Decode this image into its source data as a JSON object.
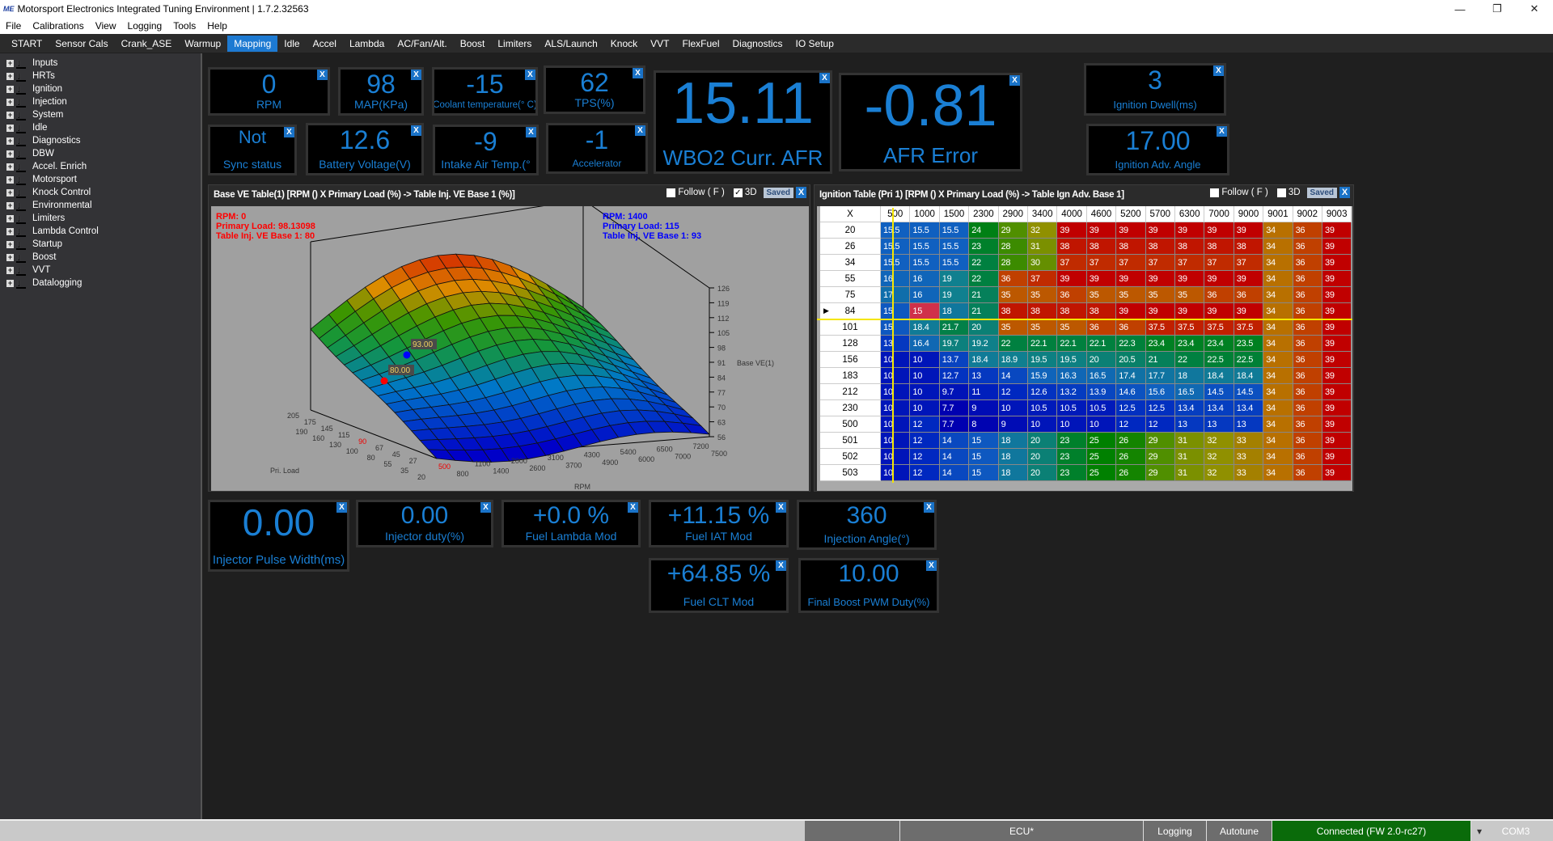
{
  "window": {
    "title": "Motorsport Electronics Integrated Tuning Environment | 1.7.2.32563",
    "logo": "ME",
    "controls": [
      "—",
      "❐",
      "✕"
    ]
  },
  "menu": [
    "File",
    "Calibrations",
    "View",
    "Logging",
    "Tools",
    "Help"
  ],
  "tabs": [
    "START",
    "Sensor Cals",
    "Crank_ASE",
    "Warmup",
    "Mapping",
    "Idle",
    "Accel",
    "Lambda",
    "AC/Fan/Alt.",
    "Boost",
    "Limiters",
    "ALS/Launch",
    "Knock",
    "VVT",
    "FlexFuel",
    "Diagnostics",
    "IO Setup"
  ],
  "active_tab": "Mapping",
  "sidebar": [
    "Inputs",
    "HRTs",
    "Ignition",
    "Injection",
    "System",
    "Idle",
    "Diagnostics",
    "DBW",
    "Accel. Enrich",
    "Motorsport",
    "Knock Control",
    "Environmental",
    "Limiters",
    "Lambda Control",
    "Startup",
    "Boost",
    "VVT",
    "Datalogging"
  ],
  "gauges": [
    {
      "value": "0",
      "label": "RPM"
    },
    {
      "value": "98",
      "label": "MAP(KPa)"
    },
    {
      "value": "-15",
      "label": "Coolant temperature(° C)"
    },
    {
      "value": "62",
      "label": "TPS(%)"
    },
    {
      "value": "Not",
      "label": "Sync status"
    },
    {
      "value": "12.6",
      "label": "Battery Voltage(V)"
    },
    {
      "value": "-9",
      "label": "Intake Air Temp.(°"
    },
    {
      "value": "-1",
      "label": "Accelerator"
    },
    {
      "value": "15.11",
      "label": "WBO2 Curr. AFR"
    },
    {
      "value": "-0.81",
      "label": "AFR Error"
    },
    {
      "value": "3",
      "label": "Ignition Dwell(ms)"
    },
    {
      "value": "17.00",
      "label": "Ignition Adv. Angle"
    },
    {
      "value": "0.00",
      "label": "Injector Pulse Width(ms)"
    },
    {
      "value": "0.00",
      "label": "Injector duty(%)"
    },
    {
      "value": "+0.0 %",
      "label": "Fuel Lambda Mod"
    },
    {
      "value": "+11.15 %",
      "label": "Fuel IAT Mod"
    },
    {
      "value": "360",
      "label": "Injection Angle(°)"
    },
    {
      "value": "+64.85 %",
      "label": "Fuel CLT Mod"
    },
    {
      "value": "10.00",
      "label": "Final Boost PWM Duty(%)"
    }
  ],
  "close_label": "X",
  "ve_panel": {
    "title": "Base VE Table(1) [RPM () X Primary Load (%) -> Table Inj. VE Base 1 (%)]",
    "follow_label": "Follow ( F )",
    "follow_checked": false,
    "3d_label": "3D",
    "3d_checked": true,
    "saved_label": "Saved",
    "cursor_red": [
      "RPM: 0",
      "Primary Load: 98.13098",
      "Table Inj. VE Base 1: 80"
    ],
    "cursor_blue": [
      "RPM: 1400",
      "Primary Load: 115",
      "Table Inj. VE Base 1: 93"
    ],
    "marker_red": "80.00",
    "marker_blue": "93.00",
    "colors": {
      "red": "#ff0000",
      "blue": "#0000ff"
    },
    "xlabel": "RPM",
    "ylabel": "Pri. Load",
    "zlabel": "Base VE(1)",
    "rpm_ticks": [
      "500",
      "800",
      "1100",
      "1400",
      "2000",
      "2600",
      "3100",
      "3700",
      "4300",
      "4900",
      "5400",
      "6000",
      "6500",
      "7000",
      "7200",
      "7500"
    ],
    "load_ticks": [
      "205",
      "190",
      "175",
      "160",
      "145",
      "130",
      "115",
      "100",
      "90",
      "80",
      "67",
      "55",
      "45",
      "35",
      "27",
      "20"
    ],
    "z_ticks": [
      "56",
      "63",
      "70",
      "77",
      "84",
      "91",
      "98",
      "105",
      "112",
      "119",
      "126"
    ]
  },
  "ign_panel": {
    "title": "Ignition Table (Pri 1) [RPM () X Primary Load (%) -> Table Ign Adv. Base 1]",
    "follow_label": "Follow ( F )",
    "follow_checked": false,
    "3d_label": "3D",
    "3d_checked": false,
    "saved_label": "Saved",
    "corner": "X",
    "columns": [
      "500",
      "1000",
      "1500",
      "2300",
      "2900",
      "3400",
      "4000",
      "4600",
      "5200",
      "5700",
      "6300",
      "7000",
      "9000",
      "9001",
      "9002",
      "9003"
    ],
    "selected_row": "84",
    "highlight_cell": {
      "row": "84",
      "col": "1000",
      "color": "#d0304a"
    },
    "rows": [
      {
        "load": "20",
        "values": [
          "15.5",
          "15.5",
          "15.5",
          "24",
          "29",
          "32",
          "39",
          "39",
          "39",
          "39",
          "39",
          "39",
          "39",
          "34",
          "36",
          "39"
        ]
      },
      {
        "load": "26",
        "values": [
          "15.5",
          "15.5",
          "15.5",
          "23",
          "28",
          "31",
          "38",
          "38",
          "38",
          "38",
          "38",
          "38",
          "38",
          "34",
          "36",
          "39"
        ]
      },
      {
        "load": "34",
        "values": [
          "15.5",
          "15.5",
          "15.5",
          "22",
          "28",
          "30",
          "37",
          "37",
          "37",
          "37",
          "37",
          "37",
          "37",
          "34",
          "36",
          "39"
        ]
      },
      {
        "load": "55",
        "values": [
          "16",
          "16",
          "19",
          "22",
          "36",
          "37",
          "39",
          "39",
          "39",
          "39",
          "39",
          "39",
          "39",
          "34",
          "36",
          "39"
        ]
      },
      {
        "load": "75",
        "values": [
          "17",
          "16",
          "19",
          "21",
          "35",
          "35",
          "36",
          "35",
          "35",
          "35",
          "35",
          "36",
          "36",
          "34",
          "36",
          "39"
        ]
      },
      {
        "load": "84",
        "values": [
          "15",
          "15",
          "18",
          "21",
          "38",
          "38",
          "38",
          "38",
          "39",
          "39",
          "39",
          "39",
          "39",
          "34",
          "36",
          "39"
        ]
      },
      {
        "load": "101",
        "values": [
          "15",
          "18.4",
          "21.7",
          "20",
          "35",
          "35",
          "35",
          "36",
          "36",
          "37.5",
          "37.5",
          "37.5",
          "37.5",
          "34",
          "36",
          "39"
        ]
      },
      {
        "load": "128",
        "values": [
          "13",
          "16.4",
          "19.7",
          "19.2",
          "22",
          "22.1",
          "22.1",
          "22.1",
          "22.3",
          "23.4",
          "23.4",
          "23.4",
          "23.5",
          "34",
          "36",
          "39"
        ]
      },
      {
        "load": "156",
        "values": [
          "10",
          "10",
          "13.7",
          "18.4",
          "18.9",
          "19.5",
          "19.5",
          "20",
          "20.5",
          "21",
          "22",
          "22.5",
          "22.5",
          "34",
          "36",
          "39"
        ]
      },
      {
        "load": "183",
        "values": [
          "10",
          "10",
          "12.7",
          "13",
          "14",
          "15.9",
          "16.3",
          "16.5",
          "17.4",
          "17.7",
          "18",
          "18.4",
          "18.4",
          "34",
          "36",
          "39"
        ]
      },
      {
        "load": "212",
        "values": [
          "10",
          "10",
          "9.7",
          "11",
          "12",
          "12.6",
          "13.2",
          "13.9",
          "14.6",
          "15.6",
          "16.5",
          "14.5",
          "14.5",
          "34",
          "36",
          "39"
        ]
      },
      {
        "load": "230",
        "values": [
          "10",
          "10",
          "7.7",
          "9",
          "10",
          "10.5",
          "10.5",
          "10.5",
          "12.5",
          "12.5",
          "13.4",
          "13.4",
          "13.4",
          "34",
          "36",
          "39"
        ]
      },
      {
        "load": "500",
        "values": [
          "10",
          "12",
          "7.7",
          "8",
          "9",
          "10",
          "10",
          "10",
          "12",
          "12",
          "13",
          "13",
          "13",
          "34",
          "36",
          "39"
        ]
      },
      {
        "load": "501",
        "values": [
          "10",
          "12",
          "14",
          "15",
          "18",
          "20",
          "23",
          "25",
          "26",
          "29",
          "31",
          "32",
          "33",
          "34",
          "36",
          "39"
        ]
      },
      {
        "load": "502",
        "values": [
          "10",
          "12",
          "14",
          "15",
          "18",
          "20",
          "23",
          "25",
          "26",
          "29",
          "31",
          "32",
          "33",
          "34",
          "36",
          "39"
        ]
      },
      {
        "load": "503",
        "values": [
          "10",
          "12",
          "14",
          "15",
          "18",
          "20",
          "23",
          "25",
          "26",
          "29",
          "31",
          "32",
          "33",
          "34",
          "36",
          "39"
        ]
      }
    ]
  },
  "statusbar": {
    "ecu": "ECU*",
    "logging": "Logging",
    "autotune": "Autotune",
    "connection": "Connected (FW 2.0-rc27)",
    "connection_color": "#0a6b0a",
    "port": "COM3",
    "dropdown": "▾"
  },
  "gauge_color": "#1a7fd4",
  "accent": "#1d7ad2"
}
